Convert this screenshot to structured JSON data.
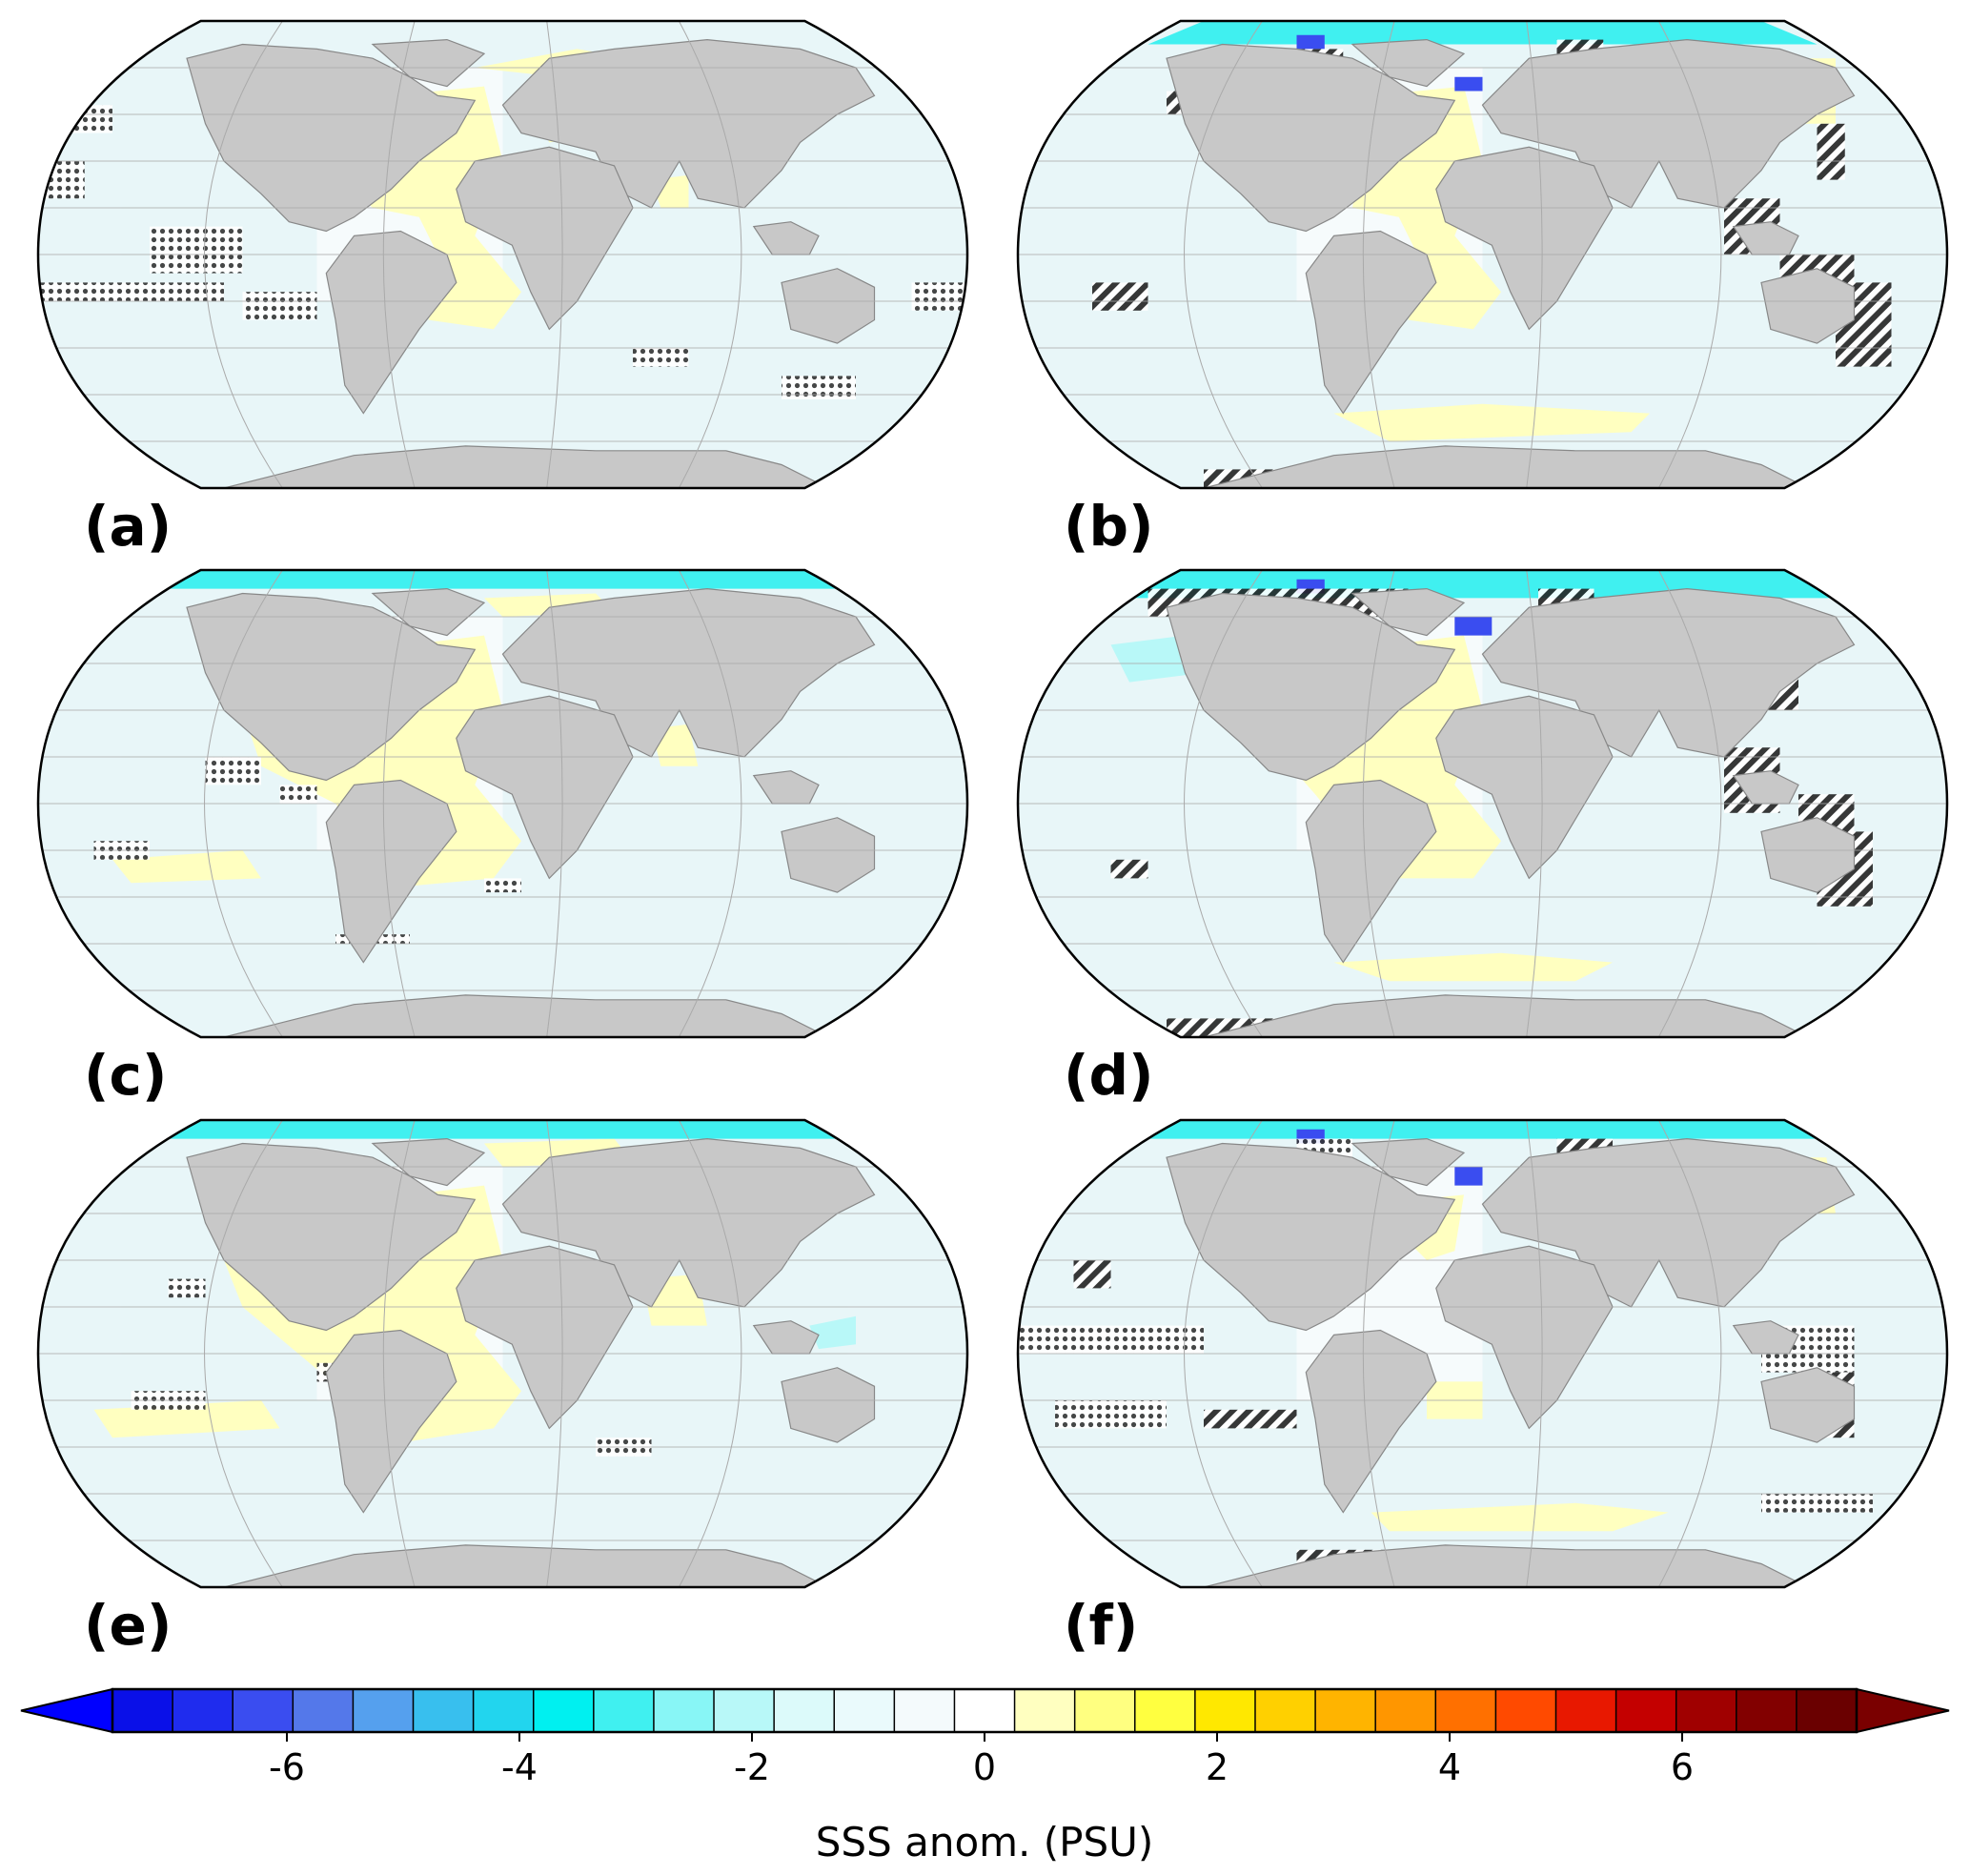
{
  "figure": {
    "panels": [
      {
        "id": "a",
        "label": "(a)",
        "hatch": "dots",
        "variant": 0
      },
      {
        "id": "b",
        "label": "(b)",
        "hatch": "stripes",
        "variant": 1
      },
      {
        "id": "c",
        "label": "(c)",
        "hatch": "dots",
        "variant": 2
      },
      {
        "id": "d",
        "label": "(d)",
        "hatch": "stripes",
        "variant": 3
      },
      {
        "id": "e",
        "label": "(e)",
        "hatch": "dots",
        "variant": 4
      },
      {
        "id": "f",
        "label": "(f)",
        "hatch": "mixed",
        "variant": 5
      }
    ],
    "colorbar": {
      "title": "SSS anom. (PSU)",
      "min": -7.5,
      "max": 7.5,
      "ticks": [
        "-6",
        "-4",
        "-2",
        "0",
        "2",
        "4",
        "6"
      ],
      "tick_values": [
        -6,
        -4,
        -2,
        0,
        2,
        4,
        6
      ],
      "extend": "both",
      "colors": [
        "#0a10e8",
        "#1f2cee",
        "#3a4df0",
        "#5478ea",
        "#55a0ee",
        "#38bfee",
        "#22d5ee",
        "#00f0f0",
        "#40f0f0",
        "#88f6f6",
        "#b8f8f8",
        "#dcfafa",
        "#eafafc",
        "#f4fafc",
        "#ffffff",
        "#ffffc0",
        "#ffff80",
        "#ffff40",
        "#ffe800",
        "#ffd000",
        "#ffb400",
        "#ff9600",
        "#ff7000",
        "#ff4a00",
        "#e81800",
        "#c40000",
        "#a00000",
        "#820000",
        "#6a0000"
      ],
      "under_color": "#0000ff",
      "over_color": "#7a0000"
    },
    "land_color": "#c8c8c8",
    "ocean_base_color": "#e8f6f8"
  }
}
